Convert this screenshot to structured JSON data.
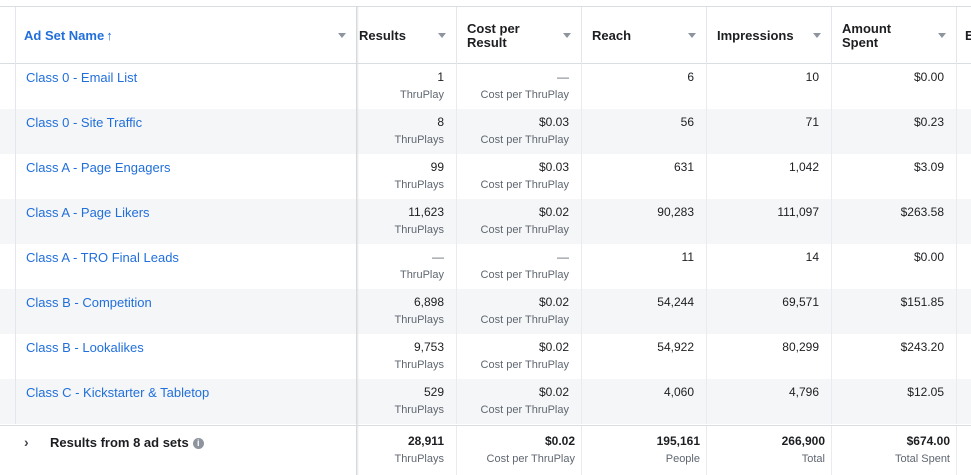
{
  "columns": {
    "ad_set_name": "Ad Set Name",
    "sort_arrow": "↑",
    "results": "Results",
    "cost_per_result_1": "Cost per",
    "cost_per_result_2": "Result",
    "reach": "Reach",
    "impressions": "Impressions",
    "amount_spent_1": "Amount",
    "amount_spent_2": "Spent",
    "next": "E"
  },
  "rows": [
    {
      "name": "Class 0 - Email List",
      "results": "1",
      "results_sub": "ThruPlay",
      "cost": "—",
      "cost_sub": "Cost per ThruPlay",
      "reach": "6",
      "impressions": "10",
      "spent": "$0.00"
    },
    {
      "name": "Class 0 - Site Traffic",
      "results": "8",
      "results_sub": "ThruPlays",
      "cost": "$0.03",
      "cost_sub": "Cost per ThruPlay",
      "reach": "56",
      "impressions": "71",
      "spent": "$0.23"
    },
    {
      "name": "Class A - Page Engagers",
      "results": "99",
      "results_sub": "ThruPlays",
      "cost": "$0.03",
      "cost_sub": "Cost per ThruPlay",
      "reach": "631",
      "impressions": "1,042",
      "spent": "$3.09"
    },
    {
      "name": "Class A - Page Likers",
      "results": "11,623",
      "results_sub": "ThruPlays",
      "cost": "$0.02",
      "cost_sub": "Cost per ThruPlay",
      "reach": "90,283",
      "impressions": "111,097",
      "spent": "$263.58"
    },
    {
      "name": "Class A - TRO Final Leads",
      "results": "—",
      "results_sub": "ThruPlay",
      "cost": "—",
      "cost_sub": "Cost per ThruPlay",
      "reach": "11",
      "impressions": "14",
      "spent": "$0.00"
    },
    {
      "name": "Class B - Competition",
      "results": "6,898",
      "results_sub": "ThruPlays",
      "cost": "$0.02",
      "cost_sub": "Cost per ThruPlay",
      "reach": "54,244",
      "impressions": "69,571",
      "spent": "$151.85"
    },
    {
      "name": "Class B - Lookalikes",
      "results": "9,753",
      "results_sub": "ThruPlays",
      "cost": "$0.02",
      "cost_sub": "Cost per ThruPlay",
      "reach": "54,922",
      "impressions": "80,299",
      "spent": "$243.20"
    },
    {
      "name": "Class C - Kickstarter & Tabletop",
      "results": "529",
      "results_sub": "ThruPlays",
      "cost": "$0.02",
      "cost_sub": "Cost per ThruPlay",
      "reach": "4,060",
      "impressions": "4,796",
      "spent": "$12.05"
    }
  ],
  "totals": {
    "chevron": "›",
    "label": "Results from 8 ad sets",
    "info_icon": "i",
    "results": "28,911",
    "results_sub": "ThruPlays",
    "cost": "$0.02",
    "cost_sub": "Cost per ThruPlay",
    "reach": "195,161",
    "reach_sub": "People",
    "impressions": "266,900",
    "impressions_sub": "Total",
    "spent": "$674.00",
    "spent_sub": "Total Spent"
  },
  "colors": {
    "link": "#216fdb",
    "alt_row": "#f5f6f7"
  }
}
